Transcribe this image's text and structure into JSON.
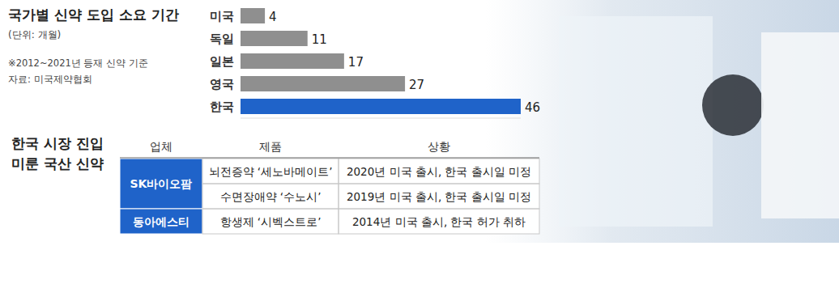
{
  "chart_data": {
    "type": "bar",
    "orientation": "horizontal",
    "title": "국가별 신약 도입 소요 기간",
    "subtitle": "(단위: 개월)",
    "note": "※2012~2021년 등재 신약 기준",
    "source": "자료: 미국제약협회",
    "categories": [
      "미국",
      "독일",
      "일본",
      "영국",
      "한국"
    ],
    "values": [
      4,
      11,
      17,
      27,
      46
    ],
    "colors": [
      "#8f8f8f",
      "#8f8f8f",
      "#8f8f8f",
      "#8f8f8f",
      "#1f63c9"
    ],
    "xlim": [
      0,
      46
    ],
    "data_labels": true,
    "tick_labels": "y",
    "grid": false
  },
  "table": {
    "title": [
      "한국 시장 진입",
      "미룬 국산 신약"
    ],
    "header": [
      "업체",
      "제품",
      "상황"
    ],
    "groups": [
      {
        "company": "SK바이오팜",
        "products": [
          {
            "name": "뇌전증약 ‘세노바메이트’",
            "status": "2020년 미국 출시, 한국 출시일 미정"
          },
          {
            "name": "수면장애약 ‘수노시’",
            "status": "2019년 미국 출시, 한국 출시일 미정"
          }
        ]
      },
      {
        "company": "동아에스티",
        "products": [
          {
            "name": "항생제 ‘시벡스트로’",
            "status": "2014년 미국 출시, 한국 허가 취하"
          }
        ]
      }
    ]
  }
}
